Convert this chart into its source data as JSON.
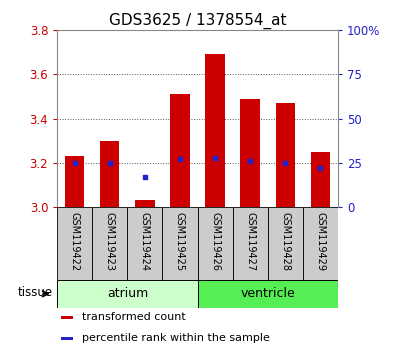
{
  "title": "GDS3625 / 1378554_at",
  "samples": [
    "GSM119422",
    "GSM119423",
    "GSM119424",
    "GSM119425",
    "GSM119426",
    "GSM119427",
    "GSM119428",
    "GSM119429"
  ],
  "transformed_count": [
    3.23,
    3.3,
    3.03,
    3.51,
    3.69,
    3.49,
    3.47,
    3.25
  ],
  "percentile_right": [
    25,
    25,
    17,
    27,
    28,
    26,
    25,
    22
  ],
  "bar_bottom": 3.0,
  "ylim_left": [
    3.0,
    3.8
  ],
  "ylim_right": [
    0,
    100
  ],
  "yticks_left": [
    3.0,
    3.2,
    3.4,
    3.6,
    3.8
  ],
  "yticks_right": [
    0,
    25,
    50,
    75,
    100
  ],
  "ytick_labels_right": [
    "0",
    "25",
    "50",
    "75",
    "100%"
  ],
  "bar_color": "#cc0000",
  "dot_color": "#2222cc",
  "bar_width": 0.55,
  "groups": [
    {
      "label": "atrium",
      "indices": [
        0,
        1,
        2,
        3
      ],
      "color": "#ccffcc"
    },
    {
      "label": "ventricle",
      "indices": [
        4,
        5,
        6,
        7
      ],
      "color": "#55ee55"
    }
  ],
  "tissue_label": "tissue",
  "legend_items": [
    {
      "color": "#cc0000",
      "label": "transformed count"
    },
    {
      "color": "#2222cc",
      "label": "percentile rank within the sample"
    }
  ],
  "bg_color": "#ffffff",
  "tick_color_left": "#cc0000",
  "tick_color_right": "#2222cc",
  "title_fontsize": 11,
  "tick_fontsize": 8.5,
  "sample_fontsize": 7,
  "legend_fontsize": 8
}
